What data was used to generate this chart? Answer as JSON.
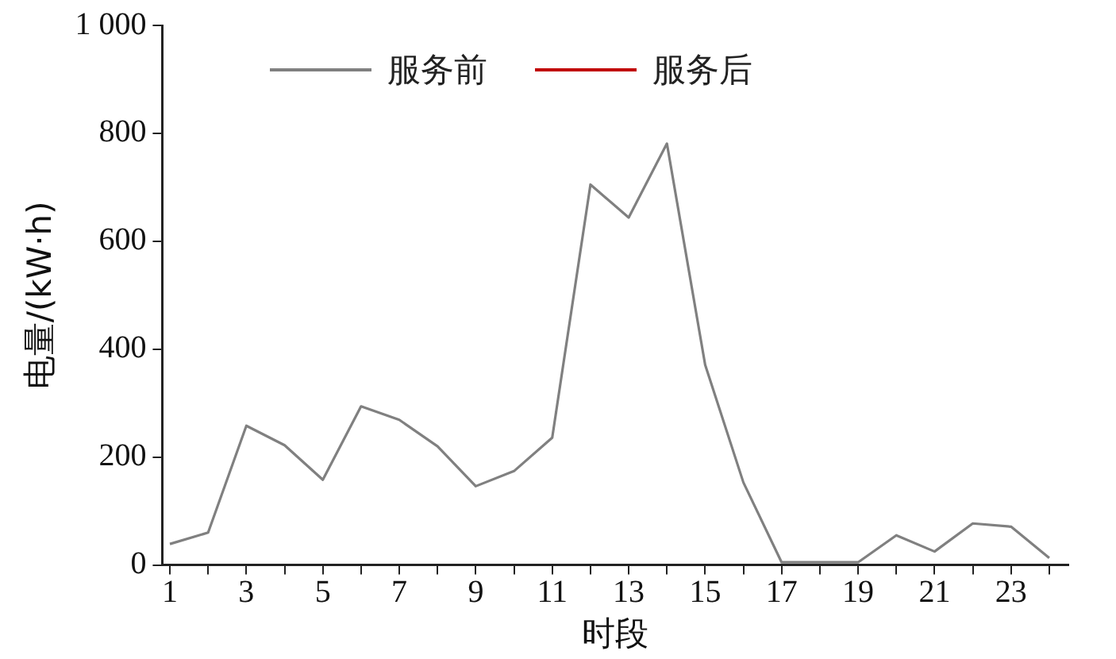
{
  "chart_data": {
    "type": "line",
    "xlabel": "时段",
    "ylabel": "电量/(kW·h)",
    "x": [
      1,
      2,
      3,
      4,
      5,
      6,
      7,
      8,
      9,
      10,
      11,
      12,
      13,
      14,
      15,
      16,
      17,
      18,
      19,
      20,
      21,
      22,
      23,
      24
    ],
    "series": [
      {
        "name": "服务前",
        "color": "#808080",
        "values": [
          39,
          60,
          258,
          222,
          158,
          294,
          269,
          220,
          146,
          174,
          236,
          705,
          644,
          781,
          371,
          153,
          5,
          5,
          5,
          55,
          25,
          77,
          71,
          13
        ]
      },
      {
        "name": "服务后",
        "color": "#c00000",
        "values": [
          null,
          null,
          null,
          null,
          null,
          null,
          null,
          null,
          null,
          null,
          null,
          null,
          null,
          null,
          null,
          null,
          null,
          null,
          null,
          null,
          null,
          null,
          null,
          null
        ]
      }
    ],
    "xlim": [
      0.8,
      24.5
    ],
    "xticks": [
      1,
      {
        "value": 2,
        "label": null
      },
      3,
      {
        "value": 4,
        "label": null
      },
      5,
      {
        "value": 6,
        "label": null
      },
      7,
      {
        "value": 8,
        "label": null
      },
      9,
      {
        "value": 10,
        "label": null
      },
      11,
      {
        "value": 12,
        "label": null
      },
      13,
      {
        "value": 14,
        "label": null
      },
      15,
      {
        "value": 16,
        "label": null
      },
      17,
      {
        "value": 18,
        "label": null
      },
      19,
      {
        "value": 20,
        "label": null
      },
      21,
      {
        "value": 22,
        "label": null
      },
      23,
      {
        "value": 24,
        "label": null
      }
    ],
    "ylim": [
      0,
      1000
    ],
    "yticks": [
      0,
      200,
      400,
      600,
      800,
      {
        "value": 1000,
        "label": "1 000"
      }
    ],
    "grid": false,
    "legend": "top left",
    "marker": "none",
    "line_style": "solid"
  }
}
